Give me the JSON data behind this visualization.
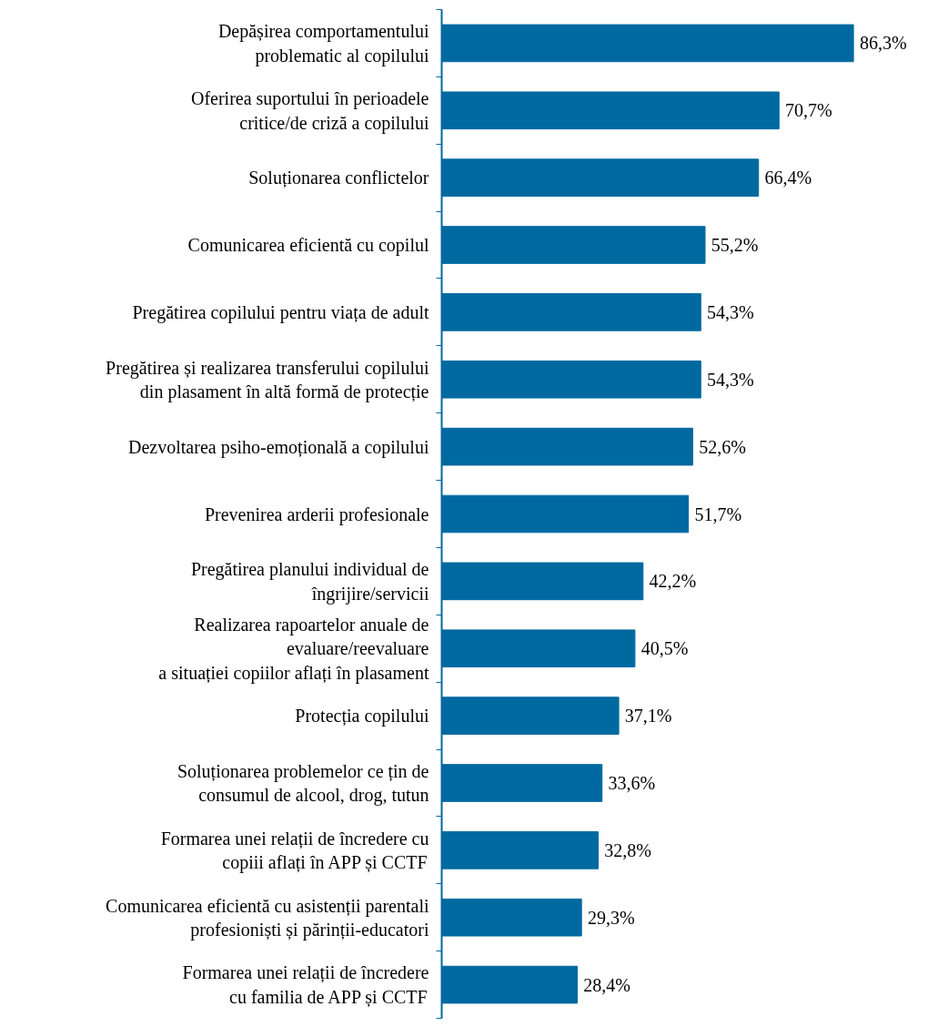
{
  "chart_data": {
    "type": "bar",
    "orientation": "horizontal",
    "color": "#0069a0",
    "categories": [
      "Depășirea comportamentului\nproblematic al copilului",
      "Oferirea suportului în perioadele\ncritice/de criză a copilului",
      "Soluționarea conflictelor",
      "Comunicarea eficientă cu copilul",
      "Pregătirea copilului pentru viața de adult",
      "Pregătirea și realizarea transferului copilului\ndin plasament în altă formă de protecție",
      "Dezvoltarea psiho-emoțională a copilului",
      "Prevenirea arderii profesionale",
      "Pregătirea planului individual de\nîngrijire/servicii",
      "Realizarea rapoartelor anuale de\nevaluare/reevaluare\na situației copiilor aflați în plasament",
      "Protecția copilului",
      "Soluționarea problemelor ce țin de\nconsumul de alcool, drog, tutun",
      "Formarea unei relații de încredere cu\ncopiii aflați în APP și CCTF",
      "Comunicarea eficientă cu asistenții parentali\nprofesioniști și părinții-educatori",
      "Formarea unei relații de încredere\ncu familia de APP și CCTF"
    ],
    "values": [
      86.3,
      70.7,
      66.4,
      55.2,
      54.3,
      54.3,
      52.6,
      51.7,
      42.2,
      40.5,
      37.1,
      33.6,
      32.8,
      29.3,
      28.4
    ],
    "value_labels": [
      "86,3%",
      "70,7%",
      "66,4%",
      "55,2%",
      "54,3%",
      "54,3%",
      "52,6%",
      "51,7%",
      "42,2%",
      "40,5%",
      "37,1%",
      "33,6%",
      "32,8%",
      "29,3%",
      "28,4%"
    ],
    "grid": false
  }
}
